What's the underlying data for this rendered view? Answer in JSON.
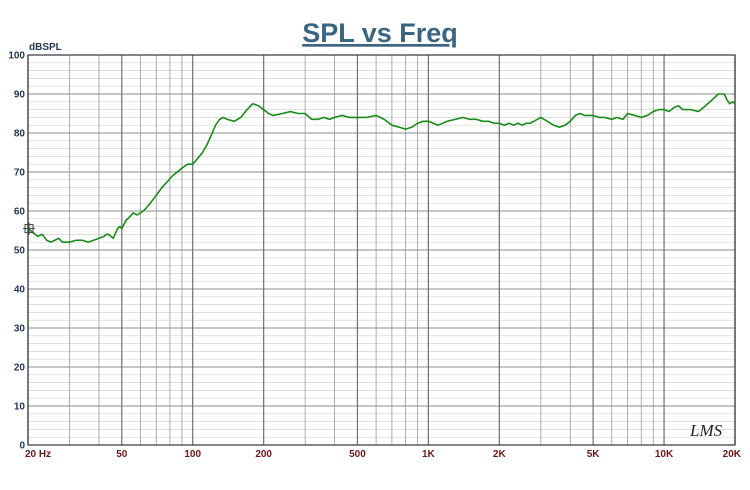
{
  "chart_data": {
    "type": "line",
    "title": "SPL vs Freq",
    "ylabel": "dBSPL",
    "xlabel": "",
    "xscale": "log",
    "xlim": [
      20,
      20000
    ],
    "ylim": [
      0,
      100
    ],
    "grid": true,
    "legend": "none",
    "yticks": [
      0,
      10,
      20,
      30,
      40,
      50,
      60,
      70,
      80,
      90,
      100
    ],
    "xticks": [
      {
        "value": 20,
        "label": "20  Hz"
      },
      {
        "value": 50,
        "label": "50"
      },
      {
        "value": 100,
        "label": "100"
      },
      {
        "value": 200,
        "label": "200"
      },
      {
        "value": 500,
        "label": "500"
      },
      {
        "value": 1000,
        "label": "1K"
      },
      {
        "value": 2000,
        "label": "2K"
      },
      {
        "value": 5000,
        "label": "5K"
      },
      {
        "value": 10000,
        "label": "10K"
      },
      {
        "value": 20000,
        "label": "20K"
      }
    ],
    "series": [
      {
        "name": "",
        "color": "#1a8a1a",
        "x": [
          20,
          21,
          22,
          23,
          24,
          25,
          26,
          27,
          28,
          30,
          32,
          34,
          36,
          38,
          40,
          42,
          43,
          44,
          46,
          48,
          49,
          50,
          52,
          54,
          56,
          58,
          60,
          63,
          66,
          70,
          74,
          78,
          82,
          86,
          90,
          95,
          100,
          105,
          110,
          115,
          120,
          125,
          130,
          135,
          140,
          150,
          160,
          170,
          180,
          190,
          200,
          210,
          220,
          240,
          260,
          280,
          300,
          320,
          340,
          360,
          380,
          400,
          430,
          460,
          500,
          550,
          600,
          650,
          700,
          750,
          800,
          850,
          900,
          950,
          1000,
          1100,
          1200,
          1300,
          1400,
          1500,
          1600,
          1700,
          1800,
          1900,
          2000,
          2100,
          2200,
          2300,
          2400,
          2500,
          2600,
          2700,
          2800,
          3000,
          3200,
          3400,
          3600,
          3800,
          4000,
          4200,
          4400,
          4600,
          4800,
          5000,
          5300,
          5600,
          6000,
          6300,
          6700,
          7000,
          7500,
          8000,
          8500,
          9000,
          9500,
          10000,
          10500,
          11000,
          11500,
          12000,
          12500,
          13000,
          14000,
          15000,
          16000,
          17000,
          18000,
          18500,
          19000,
          19500,
          20000
        ],
        "y": [
          55.5,
          54.5,
          53.5,
          54,
          52.5,
          52,
          52.5,
          53,
          52,
          52,
          52.5,
          52.5,
          52,
          52.5,
          53,
          53.5,
          54,
          54,
          53,
          55.5,
          56,
          55.5,
          57.5,
          58.5,
          59.5,
          59,
          59.5,
          60.5,
          62,
          64,
          66,
          67.5,
          69,
          70,
          71,
          72,
          72,
          73.5,
          75,
          77,
          79.5,
          82,
          83.5,
          84,
          83.5,
          83,
          84,
          86,
          87.5,
          87,
          86,
          85,
          84.5,
          85,
          85.5,
          85,
          85,
          83.5,
          83.5,
          84,
          83.5,
          84,
          84.5,
          84,
          84,
          84,
          84.5,
          83.5,
          82,
          81.5,
          81,
          81.5,
          82.5,
          83,
          83,
          82,
          83,
          83.5,
          84,
          83.5,
          83.5,
          83,
          83,
          82.5,
          82.5,
          82,
          82.5,
          82,
          82.5,
          82,
          82.5,
          82.5,
          83,
          84,
          83,
          82,
          81.5,
          82,
          83,
          84.5,
          85,
          84.5,
          84.5,
          84.5,
          84,
          84,
          83.5,
          84,
          83.5,
          85,
          84.5,
          84,
          84.5,
          85.5,
          86,
          86,
          85.5,
          86.5,
          87,
          86,
          86,
          86,
          85.5,
          87,
          88.5,
          90,
          90,
          88.5,
          87.5,
          88,
          87.5
        ]
      }
    ],
    "annotation": "LMS"
  }
}
